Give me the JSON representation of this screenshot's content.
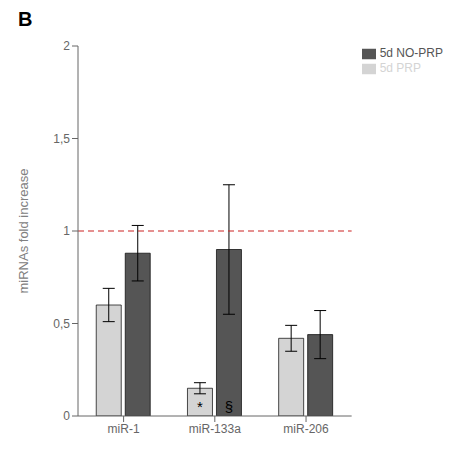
{
  "chart_data": {
    "type": "bar",
    "title": "B",
    "ylabel": "miRNAs fold increase",
    "categories": [
      "miR-1",
      "miR-133a",
      "miR-206"
    ],
    "series": [
      {
        "name": "5d PRP",
        "color": "#d4d4d4",
        "values": [
          0.6,
          0.15,
          0.42
        ],
        "errors": [
          0.09,
          0.03,
          0.07
        ]
      },
      {
        "name": "5d NO-PRP",
        "color": "#555555",
        "values": [
          0.88,
          0.9,
          0.44
        ],
        "errors": [
          0.15,
          0.35,
          0.13
        ]
      }
    ],
    "ylim": [
      0,
      2.0
    ],
    "yticks": [
      0,
      {
        "value": 0.5,
        "label": "0,5"
      },
      1,
      {
        "value": 1.5,
        "label": "1,5"
      },
      2
    ],
    "reference_line": {
      "y": 1.0,
      "color": "#cc2222",
      "line_style": "dashed"
    },
    "annotations": [
      {
        "text": "*",
        "category": "miR-133a",
        "series": "5d PRP",
        "y": 0.02
      },
      {
        "text": "§",
        "category": "miR-133a",
        "series": "5d NO-PRP",
        "y": 0.02
      }
    ],
    "legend": "upper right",
    "grid": false
  }
}
